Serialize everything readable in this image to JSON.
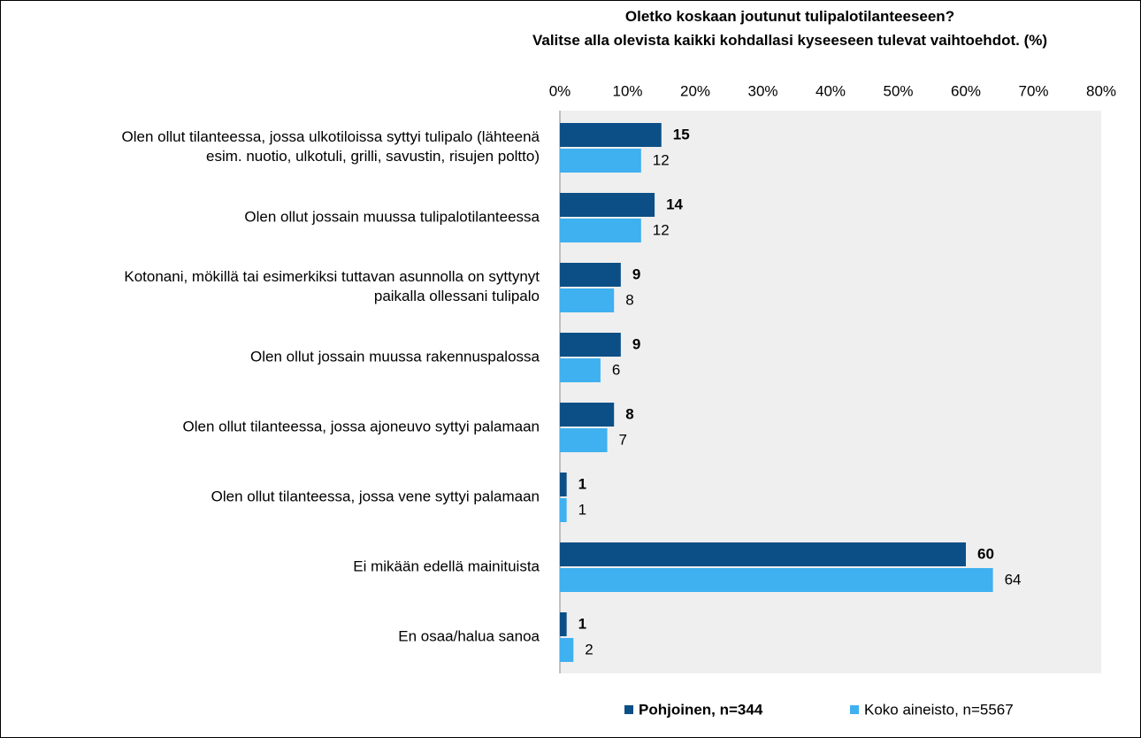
{
  "chart_data": {
    "type": "hbar",
    "title": "Oletko koskaan joutunut tulipalotilanteeseen?\nValitse alla olevista kaikki kohdallasi kyseeseen tulevat vaihtoehdot. (%)",
    "categories": [
      "Olen ollut tilanteessa, jossa ulkotiloissa syttyi tulipalo (lähteenä\nesim. nuotio, ulkotuli, grilli, savustin, risujen poltto)",
      "Olen ollut jossain muussa tulipalotilanteessa",
      "Kotonani, mökillä tai esimerkiksi tuttavan asunnolla on syttynyt\npaikalla ollessani tulipalo",
      "Olen ollut jossain muussa rakennuspalossa",
      "Olen ollut tilanteessa, jossa ajoneuvo syttyi palamaan",
      "Olen ollut tilanteessa, jossa vene syttyi palamaan",
      "Ei mikään edellä mainituista",
      "En osaa/halua sanoa"
    ],
    "series": [
      {
        "name": "Pohjoinen, n=344",
        "color": "#0b4f86",
        "values": [
          15,
          14,
          9,
          9,
          8,
          1,
          60,
          1
        ]
      },
      {
        "name": "Koko aineisto, n=5567",
        "color": "#3fb0f0",
        "values": [
          12,
          12,
          8,
          6,
          7,
          1,
          64,
          2
        ]
      }
    ],
    "xlim": [
      0,
      80
    ],
    "xticks": [
      {
        "value": 0,
        "label": "0%"
      },
      {
        "value": 10,
        "label": "10%"
      },
      {
        "value": 20,
        "label": "20%"
      },
      {
        "value": 30,
        "label": "30%"
      },
      {
        "value": 40,
        "label": "40%"
      },
      {
        "value": 50,
        "label": "50%"
      },
      {
        "value": 60,
        "label": "60%"
      },
      {
        "value": 70,
        "label": "70%"
      },
      {
        "value": 80,
        "label": "80%"
      }
    ],
    "legend": "bottom"
  }
}
